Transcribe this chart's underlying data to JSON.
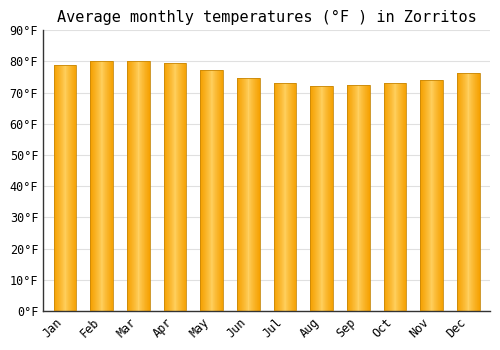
{
  "title": "Average monthly temperatures (°F ) in Zorritos",
  "months": [
    "Jan",
    "Feb",
    "Mar",
    "Apr",
    "May",
    "Jun",
    "Jul",
    "Aug",
    "Sep",
    "Oct",
    "Nov",
    "Dec"
  ],
  "values": [
    78.8,
    80.1,
    80.2,
    79.3,
    77.2,
    74.8,
    73.0,
    72.0,
    72.3,
    73.0,
    74.0,
    76.3
  ],
  "bar_color_center": "#FFD060",
  "bar_color_edge": "#F5A000",
  "bar_edge_outline": "#C8880A",
  "background_color": "#FFFFFF",
  "plot_bg_color": "#FFFFFF",
  "grid_color": "#E0E0E0",
  "ylim": [
    0,
    90
  ],
  "yticks": [
    0,
    10,
    20,
    30,
    40,
    50,
    60,
    70,
    80,
    90
  ],
  "title_fontsize": 11,
  "tick_fontsize": 8.5,
  "tick_font": "monospace",
  "bar_width": 0.62
}
